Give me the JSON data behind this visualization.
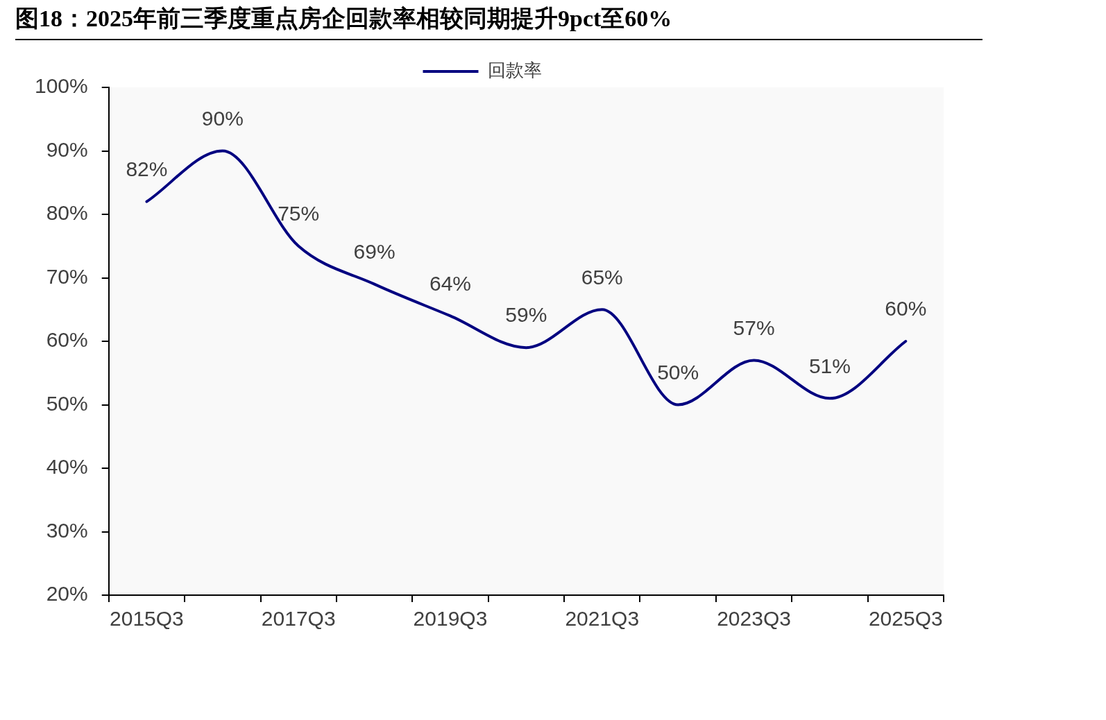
{
  "chart_data": {
    "type": "line",
    "title": "图18：2025年前三季度重点房企回款率相较同期提升9pct至60%",
    "categories": [
      "2015Q3",
      null,
      "2017Q3",
      null,
      "2019Q3",
      null,
      "2021Q3",
      null,
      "2023Q3",
      null,
      "2025Q3"
    ],
    "series": [
      {
        "name": "回款率",
        "color": "#000080",
        "values": [
          82,
          90,
          75,
          69,
          64,
          59,
          65,
          50,
          57,
          51,
          60
        ],
        "value_labels": [
          "82%",
          "90%",
          "75%",
          "69%",
          "64%",
          "59%",
          "65%",
          "50%",
          "57%",
          "51%",
          "60%"
        ]
      }
    ],
    "ylim": [
      20,
      100
    ],
    "yticks": [
      {
        "value": 20,
        "label": "20%"
      },
      {
        "value": 30,
        "label": "30%"
      },
      {
        "value": 40,
        "label": "40%"
      },
      {
        "value": 50,
        "label": "50%"
      },
      {
        "value": 60,
        "label": "60%"
      },
      {
        "value": 70,
        "label": "70%"
      },
      {
        "value": 80,
        "label": "80%"
      },
      {
        "value": 90,
        "label": "90%"
      },
      {
        "value": 100,
        "label": "100%"
      }
    ],
    "legend": "top",
    "marker": "none",
    "line_style": "solid"
  }
}
